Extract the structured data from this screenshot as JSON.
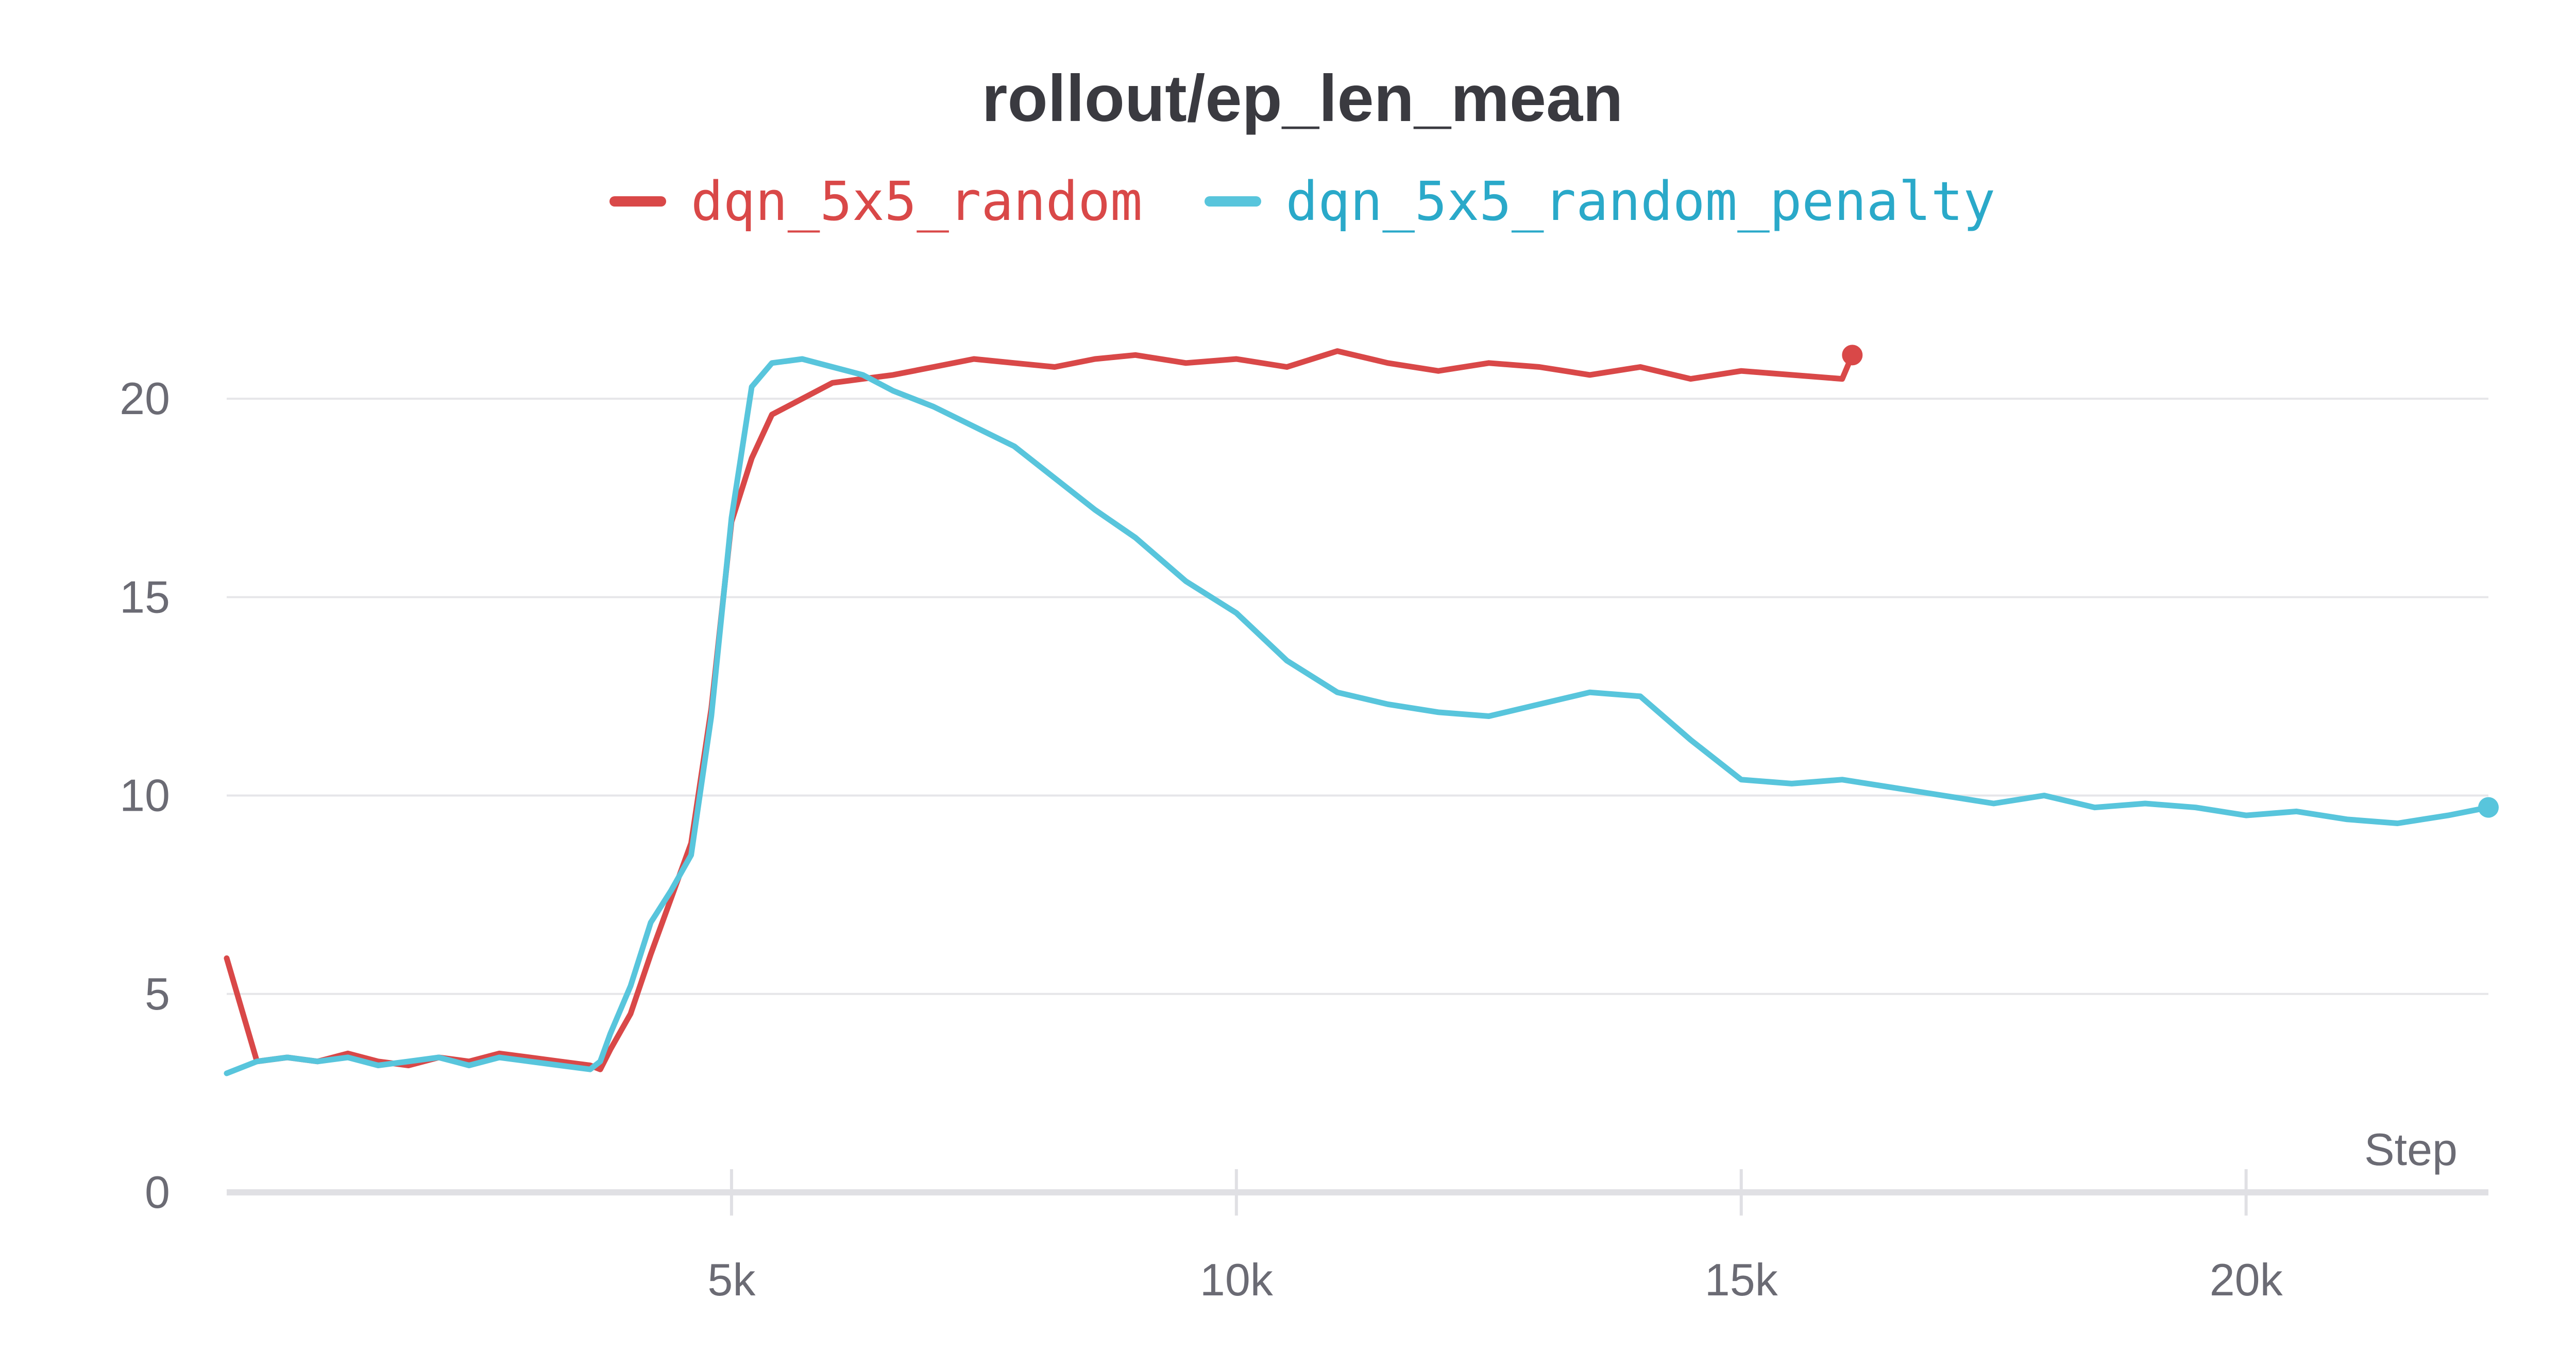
{
  "chart_data": {
    "type": "line",
    "title": "rollout/ep_len_mean",
    "xlabel": "Step",
    "ylabel": "",
    "xlim": [
      0,
      22400
    ],
    "ylim": [
      0,
      22
    ],
    "x_ticks": [
      5000,
      10000,
      15000,
      20000
    ],
    "x_tick_labels": [
      "5k",
      "10k",
      "15k",
      "20k"
    ],
    "y_ticks": [
      0,
      5,
      10,
      15,
      20
    ],
    "y_tick_labels": [
      "0",
      "5",
      "10",
      "15",
      "20"
    ],
    "grid": true,
    "legend_position": "top-center",
    "series": [
      {
        "name": "dqn_5x5_random",
        "color": "#d94848",
        "x": [
          0,
          300,
          600,
          900,
          1200,
          1500,
          1800,
          2100,
          2400,
          2700,
          3000,
          3300,
          3600,
          3700,
          3800,
          4000,
          4200,
          4400,
          4600,
          4800,
          5000,
          5200,
          5400,
          5700,
          6000,
          6300,
          6600,
          7000,
          7400,
          7800,
          8200,
          8600,
          9000,
          9500,
          10000,
          10500,
          11000,
          11500,
          12000,
          12500,
          13000,
          13500,
          14000,
          14500,
          15000,
          15500,
          16000,
          16100
        ],
        "y": [
          5.9,
          3.3,
          3.4,
          3.3,
          3.5,
          3.3,
          3.2,
          3.4,
          3.3,
          3.5,
          3.4,
          3.3,
          3.2,
          3.1,
          3.6,
          4.5,
          6.0,
          7.4,
          8.8,
          12.2,
          16.9,
          18.5,
          19.6,
          20.0,
          20.4,
          20.5,
          20.6,
          20.8,
          21.0,
          20.9,
          20.8,
          21.0,
          21.1,
          20.9,
          21.0,
          20.8,
          21.2,
          20.9,
          20.7,
          20.9,
          20.8,
          20.6,
          20.8,
          20.5,
          20.7,
          20.6,
          20.5,
          21.1
        ]
      },
      {
        "name": "dqn_5x5_random_penalty",
        "color": "#58c5dc",
        "x": [
          0,
          300,
          600,
          900,
          1200,
          1500,
          1800,
          2100,
          2400,
          2700,
          3000,
          3300,
          3600,
          3700,
          3800,
          4000,
          4200,
          4400,
          4600,
          4800,
          5000,
          5200,
          5400,
          5700,
          6000,
          6300,
          6600,
          7000,
          7400,
          7800,
          8200,
          8600,
          9000,
          9500,
          10000,
          10500,
          11000,
          11500,
          12000,
          12500,
          13000,
          13500,
          14000,
          14500,
          15000,
          15500,
          16000,
          16500,
          17000,
          17500,
          18000,
          18500,
          19000,
          19500,
          20000,
          20500,
          21000,
          21500,
          22000,
          22400
        ],
        "y": [
          3.0,
          3.3,
          3.4,
          3.3,
          3.4,
          3.2,
          3.3,
          3.4,
          3.2,
          3.4,
          3.3,
          3.2,
          3.1,
          3.3,
          4.0,
          5.2,
          6.8,
          7.6,
          8.5,
          12.0,
          17.0,
          20.3,
          20.9,
          21.0,
          20.8,
          20.6,
          20.2,
          19.8,
          19.3,
          18.8,
          18.0,
          17.2,
          16.5,
          15.4,
          14.6,
          13.4,
          12.6,
          12.3,
          12.1,
          12.0,
          12.3,
          12.6,
          12.5,
          11.4,
          10.4,
          10.3,
          10.4,
          10.2,
          10.0,
          9.8,
          10.0,
          9.7,
          9.8,
          9.7,
          9.5,
          9.6,
          9.4,
          9.3,
          9.5,
          9.7
        ]
      }
    ]
  }
}
